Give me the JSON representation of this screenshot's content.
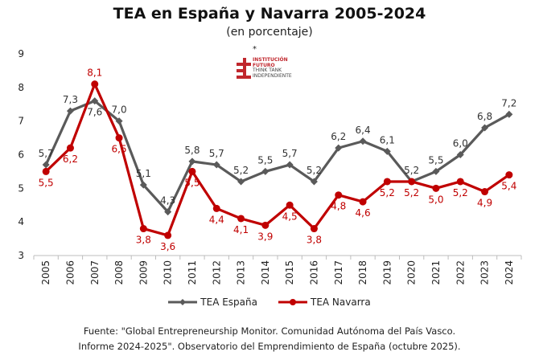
{
  "title": "TEA en España y Navarra 2005-2024",
  "subtitle": "(en porcentaje)",
  "logo": {
    "star": "*",
    "lines": [
      "INSTITUCIÓN",
      "FUTURO",
      "THINK TANK",
      "INDEPENDIENTE"
    ]
  },
  "source": {
    "line1": "Fuente: \"Global Entrepreneurship Monitor. Comunidad Autónoma del País Vasco.",
    "line2": "Informe 2024-2025\". Observatorio del Emprendimiento de España (octubre 2025)."
  },
  "chart_data": {
    "type": "line",
    "title": "TEA en España y Navarra 2005-2024",
    "subtitle": "(en porcentaje)",
    "x": [
      "2005",
      "2006",
      "2007",
      "2008",
      "2009",
      "2010",
      "2011",
      "2012",
      "2013",
      "2014",
      "2015",
      "2016",
      "2017",
      "2018",
      "2019",
      "2020",
      "2021",
      "2022",
      "2023",
      "2024"
    ],
    "ylim": [
      3,
      9
    ],
    "yticks": [
      "3",
      "4",
      "5",
      "6",
      "7",
      "8",
      "9"
    ],
    "grid": false,
    "legend_position": "bottom",
    "series": [
      {
        "name": "TEA España",
        "color": "#5a5a5a",
        "values": [
          5.7,
          7.3,
          7.6,
          7.0,
          5.1,
          4.3,
          5.8,
          5.7,
          5.2,
          5.5,
          5.7,
          5.2,
          6.2,
          6.4,
          6.1,
          5.2,
          5.5,
          6.0,
          6.8,
          7.2
        ],
        "labels": [
          "5,7",
          "7,3",
          "7,6",
          "7,0",
          "5,1",
          "4,3",
          "5,8",
          "5,7",
          "5,2",
          "5,5",
          "5,7",
          "5,2",
          "6,2",
          "6,4",
          "6,1",
          "5,2",
          "5,5",
          "6,0",
          "6,8",
          "7,2"
        ]
      },
      {
        "name": "TEA Navarra",
        "color": "#c00000",
        "values": [
          5.5,
          6.2,
          8.1,
          6.5,
          3.8,
          3.6,
          5.5,
          4.4,
          4.1,
          3.9,
          4.5,
          3.8,
          4.8,
          4.6,
          5.2,
          5.2,
          5.0,
          5.2,
          4.9,
          5.4
        ],
        "labels": [
          "5,5",
          "6,2",
          "8,1",
          "6,5",
          "3,8",
          "3,6",
          "5,5",
          "4,4",
          "4,1",
          "3,9",
          "4,5",
          "3,8",
          "4,8",
          "4,6",
          "5,2",
          "5,2",
          "5,0",
          "5,2",
          "4,9",
          "5,4"
        ]
      }
    ]
  }
}
